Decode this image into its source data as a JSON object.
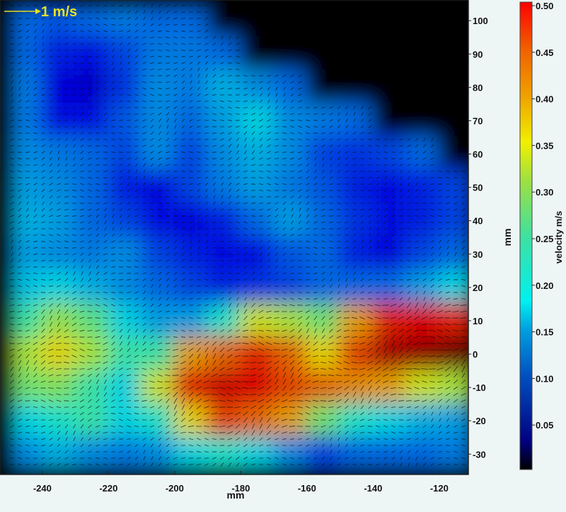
{
  "chart_data": {
    "type": "heatmap",
    "subtype": "vector field with velocity magnitude colormap",
    "xlabel": "mm",
    "ylabel": "mm",
    "xlim": [
      -252.8,
      -111.2
    ],
    "ylim": [
      -36.1,
      106.2
    ],
    "x_ticks": [
      "-240",
      "-220",
      "-200",
      "-180",
      "-160",
      "-140",
      "-120"
    ],
    "y_ticks": [
      "100",
      "90",
      "80",
      "70",
      "60",
      "50",
      "40",
      "30",
      "20",
      "10",
      "0",
      "-10",
      "-20",
      "-30"
    ],
    "grid": false,
    "grid_x": [
      -245,
      -235,
      -225,
      -215,
      -205,
      -195,
      -185,
      -175,
      -165,
      -155,
      -145,
      -135,
      -125,
      -115
    ],
    "grid_y": [
      100,
      90,
      80,
      70,
      60,
      50,
      40,
      30,
      20,
      10,
      0,
      -10,
      -20,
      -30
    ],
    "velocity": [
      [
        0.12,
        0.11,
        0.12,
        0.13,
        0.12,
        0.12,
        null,
        null,
        null,
        null,
        null,
        null,
        null,
        null
      ],
      [
        0.12,
        0.08,
        0.07,
        0.1,
        0.13,
        0.13,
        0.12,
        null,
        null,
        null,
        null,
        null,
        null,
        null
      ],
      [
        0.13,
        0.06,
        0.05,
        0.09,
        0.14,
        0.13,
        0.16,
        0.14,
        0.12,
        null,
        null,
        null,
        null,
        null
      ],
      [
        0.13,
        0.07,
        0.07,
        0.11,
        0.14,
        0.12,
        0.15,
        0.18,
        0.14,
        0.13,
        0.12,
        null,
        null,
        null
      ],
      [
        0.14,
        0.13,
        0.12,
        0.1,
        0.14,
        0.1,
        0.14,
        0.16,
        0.14,
        0.1,
        0.09,
        0.1,
        0.12,
        null
      ],
      [
        0.15,
        0.14,
        0.12,
        0.08,
        0.06,
        0.1,
        0.13,
        0.15,
        0.13,
        0.11,
        0.08,
        0.07,
        0.08,
        0.1
      ],
      [
        0.16,
        0.15,
        0.12,
        0.1,
        0.07,
        0.06,
        0.08,
        0.12,
        0.15,
        0.12,
        0.09,
        0.07,
        0.08,
        0.1
      ],
      [
        0.15,
        0.14,
        0.13,
        0.14,
        0.1,
        0.08,
        0.07,
        0.07,
        0.11,
        0.12,
        0.08,
        0.06,
        0.1,
        0.12
      ],
      [
        0.17,
        0.18,
        0.16,
        0.14,
        0.12,
        0.1,
        0.08,
        0.09,
        0.1,
        0.12,
        0.12,
        0.12,
        0.15,
        0.18
      ],
      [
        0.22,
        0.27,
        0.24,
        0.18,
        0.15,
        0.15,
        0.2,
        0.3,
        0.28,
        0.25,
        0.35,
        0.42,
        0.44,
        0.42
      ],
      [
        0.28,
        0.32,
        0.28,
        0.22,
        0.22,
        0.35,
        0.38,
        0.42,
        0.38,
        0.32,
        0.4,
        0.47,
        0.48,
        0.5
      ],
      [
        0.25,
        0.26,
        0.22,
        0.18,
        0.3,
        0.42,
        0.45,
        0.44,
        0.4,
        0.38,
        0.36,
        0.35,
        0.3,
        0.28
      ],
      [
        0.18,
        0.2,
        0.22,
        0.18,
        0.2,
        0.32,
        0.4,
        0.38,
        0.35,
        0.25,
        0.2,
        0.18,
        0.16,
        0.15
      ],
      [
        0.14,
        0.16,
        0.14,
        0.13,
        0.14,
        0.18,
        0.2,
        0.18,
        0.14,
        0.1,
        0.12,
        0.12,
        0.12,
        0.13
      ]
    ],
    "reference_vector_label": "1 m/s",
    "colorbar": {
      "label": "velocity m/s",
      "colormap": "jet",
      "range": [
        0,
        0.5
      ],
      "ticks": [
        "0.50",
        "0.45",
        "0.40",
        "0.35",
        "0.30",
        "0.25",
        "0.20",
        "0.15",
        "0.10",
        "0.05"
      ]
    },
    "colors": {
      "background": "#eef5f5",
      "masked": "#000000",
      "reference_vector": "#e8e020"
    }
  }
}
